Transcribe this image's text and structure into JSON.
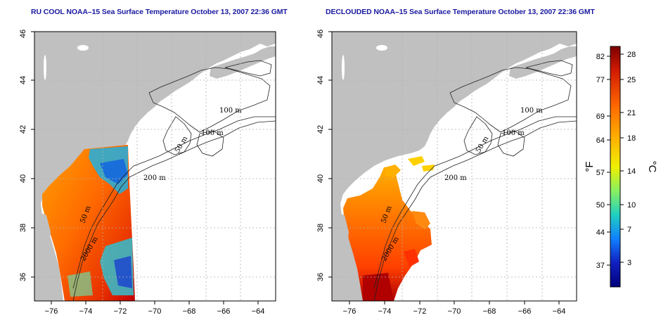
{
  "panels": [
    {
      "id": "left",
      "title": "RU COOL NOAA–15 Sea Surface Temperature October 13, 2007 22:36 GMT"
    },
    {
      "id": "right",
      "title": "DECLOUDED NOAA–15 Sea Surface Temperature October 13, 2007 22:36 GMT"
    }
  ],
  "axes": {
    "x_ticks": [
      "−76",
      "−74",
      "−72",
      "−70",
      "−68",
      "−66",
      "−64"
    ],
    "y_ticks": [
      "36",
      "38",
      "40",
      "42",
      "44",
      "46"
    ],
    "x_range": [
      -77,
      -63
    ],
    "y_range": [
      35,
      46
    ]
  },
  "contour_labels": {
    "left": [
      "100 m",
      "100 m",
      "50 m",
      "200 m",
      "50 m",
      "2000 m"
    ],
    "right": [
      "100 m",
      "100 m",
      "50 m",
      "200 m",
      "50 m",
      "2000 m"
    ]
  },
  "colorbar": {
    "f_ticks": [
      "82",
      "77",
      "69",
      "64",
      "57",
      "50",
      "44",
      "37"
    ],
    "c_ticks": [
      "28",
      "25",
      "21",
      "18",
      "14",
      "10",
      "7",
      "3"
    ],
    "f_unit": "°F",
    "c_unit": "°C",
    "colors": [
      "#7a0000",
      "#d21a00",
      "#ff6a00",
      "#ffb000",
      "#f0f000",
      "#8af060",
      "#20d0c0",
      "#1080ff",
      "#1020c0",
      "#00007a"
    ]
  },
  "colors": {
    "land": "#c0c0c0",
    "grid": "#b0b0b0",
    "title": "#1a1aa0"
  }
}
